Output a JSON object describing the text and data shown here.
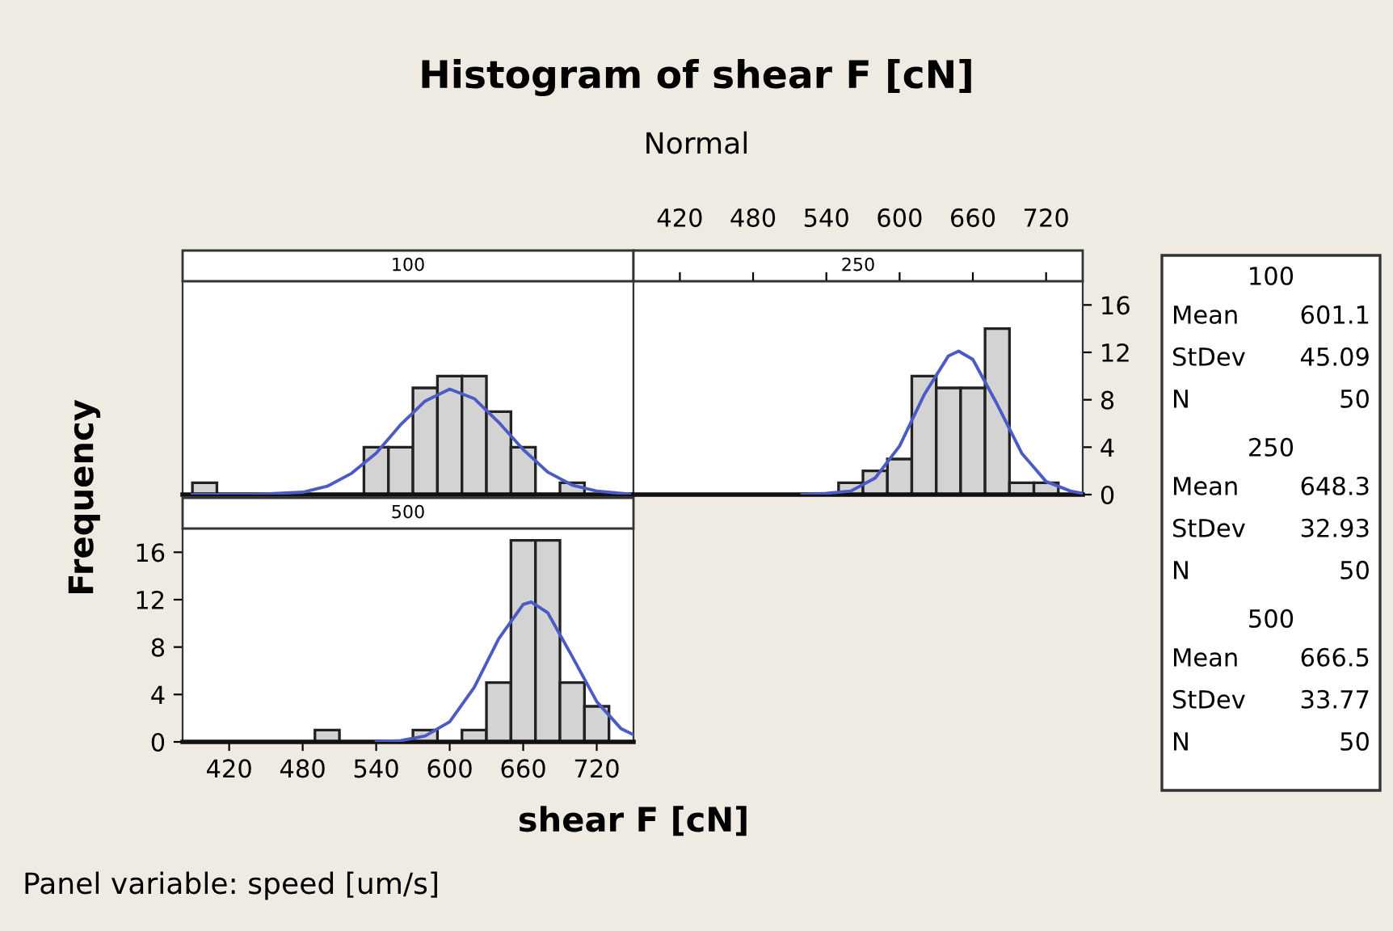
{
  "chart_data": [
    {
      "type": "other",
      "title": "Histogram of shear F [cN]",
      "subtitle": "Normal",
      "annotations": [
        "Panel variable: speed [um/s]"
      ]
    },
    {
      "type": "histogram",
      "title": "100",
      "bins": [
        390,
        410,
        430,
        450,
        470,
        490,
        510,
        530,
        550,
        570,
        590,
        610,
        630,
        650,
        670,
        690,
        710,
        730
      ],
      "xlim": [
        382,
        750
      ],
      "ylim": [
        0,
        18
      ],
      "xticks": [
        420,
        480,
        540,
        600,
        660,
        720
      ],
      "yticks": [
        0,
        4,
        8,
        12,
        16
      ],
      "tick_labels": false,
      "series": [
        {
          "type": "histogram",
          "color": "#d3d3d3",
          "values": [
            1,
            0,
            0,
            0,
            0,
            0,
            0,
            4,
            4,
            9,
            10,
            10,
            7,
            4,
            0,
            1,
            0
          ]
        },
        {
          "type": "line",
          "color": "#4a5bc4",
          "x": [
            390,
            400,
            420,
            440,
            460,
            480,
            500,
            520,
            540,
            560,
            580,
            600,
            620,
            640,
            660,
            680,
            700,
            720,
            740,
            750
          ],
          "values": [
            0.0,
            0.0,
            0.0,
            0.0,
            0.1,
            0.2,
            0.7,
            1.8,
            3.5,
            5.9,
            7.9,
            8.9,
            8.1,
            6.1,
            3.8,
            1.9,
            0.8,
            0.3,
            0.1,
            0.0
          ]
        }
      ]
    },
    {
      "type": "histogram",
      "title": "250",
      "bins": [
        390,
        410,
        430,
        450,
        470,
        490,
        510,
        530,
        550,
        570,
        590,
        610,
        630,
        650,
        670,
        690,
        710,
        730
      ],
      "xlim": [
        382,
        750
      ],
      "ylim": [
        0,
        18
      ],
      "xticks": [
        420,
        480,
        540,
        600,
        660,
        720
      ],
      "yticks": [
        0,
        4,
        8,
        12,
        16
      ],
      "series": [
        {
          "type": "histogram",
          "color": "#d3d3d3",
          "values": [
            0,
            0,
            0,
            0,
            0,
            0,
            0,
            0,
            1,
            2,
            3,
            10,
            9,
            9,
            14,
            1,
            1
          ]
        },
        {
          "type": "line",
          "color": "#4a5bc4",
          "x": [
            520,
            540,
            560,
            580,
            600,
            620,
            640,
            648.3,
            660,
            680,
            700,
            720,
            740,
            750
          ],
          "values": [
            0.0,
            0.1,
            0.3,
            1.4,
            4.1,
            8.4,
            11.7,
            12.1,
            11.4,
            7.6,
            3.5,
            1.1,
            0.3,
            0.1
          ]
        }
      ]
    },
    {
      "type": "histogram",
      "title": "500",
      "xlabel": "shear F [cN]",
      "ylabel": "Frequency",
      "bins": [
        390,
        410,
        430,
        450,
        470,
        490,
        510,
        530,
        550,
        570,
        590,
        610,
        630,
        650,
        670,
        690,
        710,
        730
      ],
      "xlim": [
        382,
        750
      ],
      "ylim": [
        0,
        18
      ],
      "xticks": [
        420,
        480,
        540,
        600,
        660,
        720
      ],
      "yticks": [
        0,
        4,
        8,
        12,
        16
      ],
      "series": [
        {
          "type": "histogram",
          "color": "#d3d3d3",
          "values": [
            0,
            0,
            0,
            0,
            0,
            1,
            0,
            0,
            0,
            1,
            0,
            1,
            5,
            17,
            17,
            5,
            3
          ]
        },
        {
          "type": "line",
          "color": "#4a5bc4",
          "x": [
            540,
            560,
            580,
            600,
            620,
            640,
            660,
            666.5,
            680,
            700,
            720,
            740,
            750
          ],
          "values": [
            0.0,
            0.1,
            0.5,
            1.7,
            4.6,
            8.7,
            11.6,
            11.8,
            10.9,
            7.2,
            3.4,
            1.1,
            0.6
          ]
        }
      ]
    },
    {
      "type": "other",
      "annotations": [
        "100",
        "Mean",
        "601.1",
        "StDev",
        "45.09",
        "N",
        "50",
        "250",
        "Mean",
        "648.3",
        "StDev",
        "32.93",
        "N",
        "50",
        "500",
        "Mean",
        "666.5",
        "StDev",
        "33.77",
        "N",
        "50"
      ]
    }
  ]
}
